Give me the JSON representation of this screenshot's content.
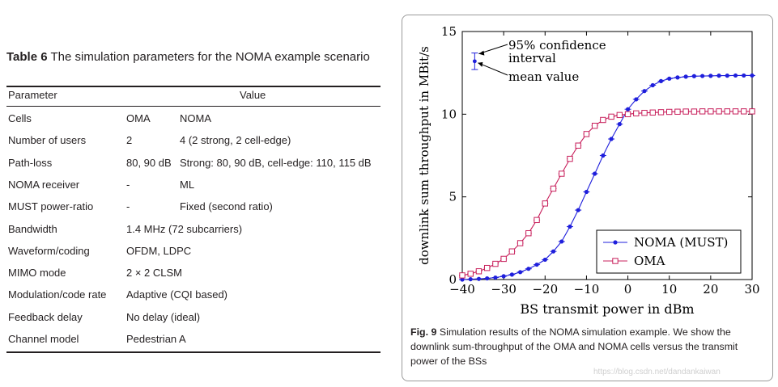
{
  "table": {
    "caption_label": "Table 6",
    "caption_text": "The simulation parameters for the NOMA example scenario",
    "header": {
      "parameter": "Parameter",
      "value": "Value"
    },
    "rows": [
      {
        "param": "Cells",
        "oma": "OMA",
        "noma": "NOMA"
      },
      {
        "param": "Number of users",
        "oma": "2",
        "noma": "4 (2 strong, 2 cell-edge)"
      },
      {
        "param": "Path-loss",
        "oma": "80, 90 dB",
        "noma": "Strong: 80, 90 dB, cell-edge: 110, 115 dB"
      },
      {
        "param": "NOMA receiver",
        "oma": "-",
        "noma": "ML"
      },
      {
        "param": "MUST power-ratio",
        "oma": "-",
        "noma": "Fixed (second ratio)"
      },
      {
        "param": "Bandwidth",
        "oma": "1.4 MHz (72 subcarriers)",
        "noma": ""
      },
      {
        "param": "Waveform/coding",
        "oma": "OFDM, LDPC",
        "noma": ""
      },
      {
        "param": "MIMO mode",
        "oma": "2 × 2 CLSM",
        "noma": ""
      },
      {
        "param": "Modulation/code rate",
        "oma": "Adaptive (CQI based)",
        "noma": ""
      },
      {
        "param": "Feedback delay",
        "oma": "No delay (ideal)",
        "noma": ""
      },
      {
        "param": "Channel model",
        "oma": "Pedestrian A",
        "noma": ""
      }
    ]
  },
  "figure": {
    "caption_label": "Fig. 9",
    "caption_text": "Simulation results of the NOMA simulation example. We show the downlink sum-throughput of the OMA and NOMA cells versus the transmit power of the BSs",
    "annotation_ci": [
      "95% confidence",
      "interval"
    ],
    "annotation_mean": "mean value",
    "watermark": "https://blog.csdn.net/dandankaiwan"
  },
  "chart_data": {
    "type": "line",
    "xlabel": "BS transmit power in dBm",
    "ylabel": "downlink sum throughput in MBit/s",
    "xlim": [
      -40,
      30
    ],
    "ylim": [
      0,
      15
    ],
    "xticks": [
      -40,
      -30,
      -20,
      -10,
      0,
      10,
      20,
      30
    ],
    "yticks": [
      0,
      5,
      10,
      15
    ],
    "xtick_labels": [
      "−40",
      "−30",
      "−20",
      "−10",
      "0",
      "10",
      "20",
      "30"
    ],
    "ytick_labels": [
      "0",
      "5",
      "10",
      "15"
    ],
    "legend_position": "bottom-right",
    "grid": false,
    "x": [
      -40,
      -38,
      -36,
      -34,
      -32,
      -30,
      -28,
      -26,
      -24,
      -22,
      -20,
      -18,
      -16,
      -14,
      -12,
      -10,
      -8,
      -6,
      -4,
      -2,
      0,
      2,
      4,
      6,
      8,
      10,
      12,
      14,
      16,
      18,
      20,
      22,
      24,
      26,
      28,
      30
    ],
    "series": [
      {
        "name": "NOMA (MUST)",
        "color": "#1f1fdc",
        "marker": "circle",
        "values": [
          0.0,
          0.02,
          0.04,
          0.07,
          0.12,
          0.2,
          0.3,
          0.45,
          0.65,
          0.9,
          1.2,
          1.7,
          2.3,
          3.2,
          4.2,
          5.3,
          6.4,
          7.5,
          8.5,
          9.4,
          10.3,
          10.9,
          11.4,
          11.75,
          12.0,
          12.15,
          12.22,
          12.27,
          12.3,
          12.31,
          12.32,
          12.33,
          12.33,
          12.34,
          12.34,
          12.34
        ]
      },
      {
        "name": "OMA",
        "color": "#c8205c",
        "marker": "square",
        "values": [
          0.25,
          0.35,
          0.5,
          0.7,
          0.95,
          1.25,
          1.7,
          2.2,
          2.8,
          3.6,
          4.6,
          5.5,
          6.4,
          7.3,
          8.1,
          8.8,
          9.3,
          9.65,
          9.85,
          9.95,
          10.0,
          10.05,
          10.08,
          10.1,
          10.12,
          10.14,
          10.15,
          10.16,
          10.16,
          10.17,
          10.17,
          10.17,
          10.17,
          10.17,
          10.17,
          10.17
        ]
      }
    ],
    "annotation_example": {
      "x": -37,
      "y": 13.2,
      "ci": [
        12.7,
        13.7
      ]
    }
  }
}
